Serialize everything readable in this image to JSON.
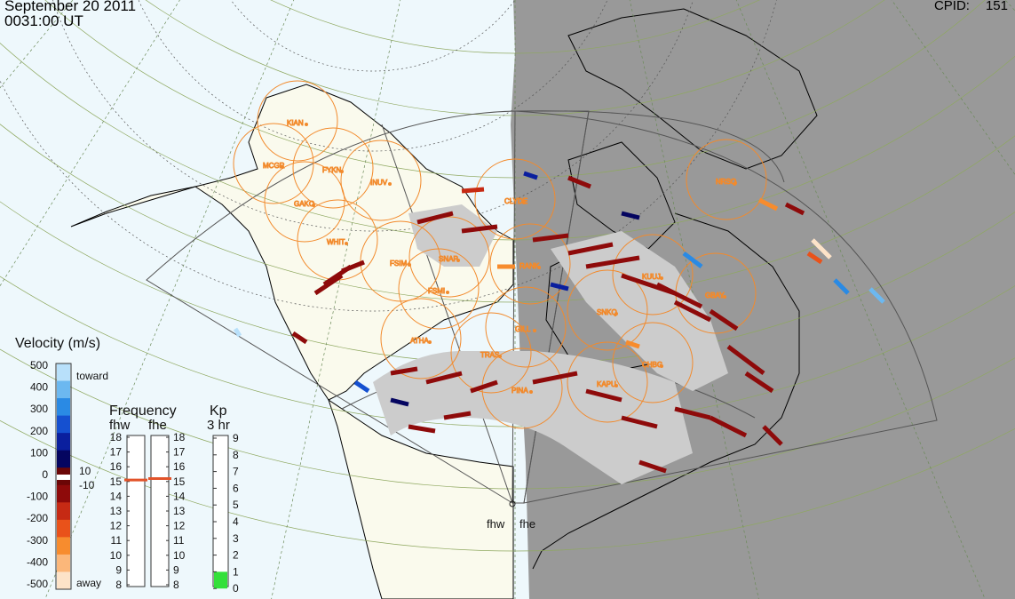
{
  "header": {
    "date": "September 20 2011",
    "time": "0031:00 UT",
    "cpid_label": "CPID:",
    "cpid_value": "151"
  },
  "stations": [
    "KIAN",
    "MCGR",
    "FYKN",
    "INUV",
    "GAKO",
    "WHIT",
    "FSIM",
    "SNAP",
    "FSMI",
    "RANK",
    "NRSQ",
    "CLYDE",
    "KUUJ",
    "GBAY",
    "SNKQ",
    "GILL",
    "ATHA",
    "TRAS",
    "CHBG",
    "KAPU",
    "PINA"
  ],
  "radars": {
    "west": "fhw",
    "east": "fhe"
  },
  "velocity_scale": {
    "title": "Velocity (m/s)",
    "ticks": [
      "500",
      "400",
      "300",
      "200",
      "100",
      "0",
      "-100",
      "-200",
      "-300",
      "-400",
      "-500"
    ],
    "toward_label": "toward",
    "away_label": "away",
    "threshold_pos": "10",
    "threshold_neg": "-10",
    "colors": [
      "#fde3c8",
      "#fbb77a",
      "#f78c2e",
      "#e9521a",
      "#c62a14",
      "#8e0a0a",
      "#6b0606",
      "#050560",
      "#0a1f9e",
      "#1550d0",
      "#2a8ae4",
      "#6cb8f0",
      "#b8e0fa"
    ]
  },
  "frequency": {
    "title": "Frequency",
    "sub_left": "fhw",
    "sub_right": "fhe",
    "ticks": [
      "18",
      "17",
      "16",
      "15",
      "14",
      "13",
      "12",
      "11",
      "10",
      "9",
      "8"
    ],
    "fhw_value": 15.1,
    "fhe_value": 15.2,
    "marker_color": "#e2532a"
  },
  "kp": {
    "title": "Kp",
    "subtitle": "3 hr",
    "ticks": [
      "9",
      "8",
      "7",
      "6",
      "5",
      "4",
      "3",
      "2",
      "1",
      "0"
    ],
    "value": 1,
    "fill_color": "#33e03a"
  },
  "colors": {
    "ocean": "#eef8fc",
    "land": "#fafaed",
    "night": "#999999",
    "station_circle": "#f28a2c",
    "coast": "#000000"
  }
}
